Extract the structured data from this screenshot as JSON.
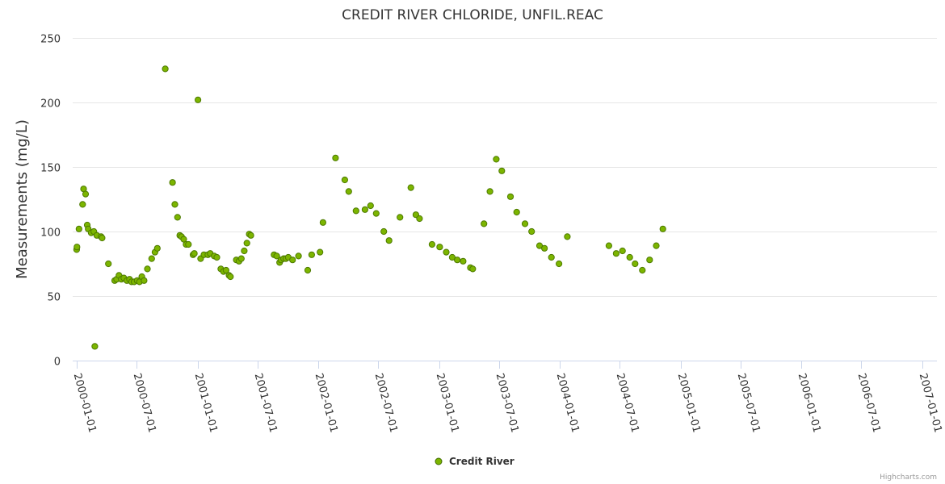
{
  "chart_data": {
    "type": "scatter",
    "title": "CREDIT RIVER CHLORIDE, UNFIL.REAC",
    "xlabel": "",
    "ylabel": "Measurements (mg/L)",
    "ylim": [
      0,
      250
    ],
    "yticks": [
      0,
      50,
      100,
      150,
      200,
      250
    ],
    "xlim": [
      "1999-12-20",
      "2007-02-15"
    ],
    "xticks": [
      "2000-01-01",
      "2000-07-01",
      "2001-01-01",
      "2001-07-01",
      "2002-01-01",
      "2002-07-01",
      "2003-01-01",
      "2003-07-01",
      "2004-01-01",
      "2004-07-01",
      "2005-01-01",
      "2005-07-01",
      "2006-01-01",
      "2006-07-01",
      "2007-01-01"
    ],
    "grid": true,
    "legend_position": "bottom-center",
    "color": "#7cb500",
    "series": [
      {
        "name": "Credit River",
        "points": [
          {
            "x": "2000-01-01",
            "y": 86
          },
          {
            "x": "2000-01-02",
            "y": 88
          },
          {
            "x": "2000-01-08",
            "y": 102
          },
          {
            "x": "2000-01-19",
            "y": 121
          },
          {
            "x": "2000-01-22",
            "y": 133
          },
          {
            "x": "2000-01-28",
            "y": 129
          },
          {
            "x": "2000-02-02",
            "y": 105
          },
          {
            "x": "2000-02-05",
            "y": 102
          },
          {
            "x": "2000-02-14",
            "y": 99
          },
          {
            "x": "2000-02-22",
            "y": 100
          },
          {
            "x": "2000-02-25",
            "y": 11
          },
          {
            "x": "2000-03-02",
            "y": 97
          },
          {
            "x": "2000-03-15",
            "y": 96
          },
          {
            "x": "2000-03-18",
            "y": 95
          },
          {
            "x": "2000-04-06",
            "y": 75
          },
          {
            "x": "2000-04-25",
            "y": 62
          },
          {
            "x": "2000-05-01",
            "y": 63
          },
          {
            "x": "2000-05-08",
            "y": 66
          },
          {
            "x": "2000-05-15",
            "y": 63
          },
          {
            "x": "2000-05-23",
            "y": 64
          },
          {
            "x": "2000-06-01",
            "y": 62
          },
          {
            "x": "2000-06-09",
            "y": 63
          },
          {
            "x": "2000-06-15",
            "y": 61
          },
          {
            "x": "2000-06-23",
            "y": 61
          },
          {
            "x": "2000-07-02",
            "y": 62
          },
          {
            "x": "2000-07-09",
            "y": 61
          },
          {
            "x": "2000-07-16",
            "y": 65
          },
          {
            "x": "2000-07-23",
            "y": 62
          },
          {
            "x": "2000-08-02",
            "y": 71
          },
          {
            "x": "2000-08-15",
            "y": 79
          },
          {
            "x": "2000-08-25",
            "y": 84
          },
          {
            "x": "2000-09-01",
            "y": 87
          },
          {
            "x": "2000-09-25",
            "y": 226
          },
          {
            "x": "2000-10-17",
            "y": 138
          },
          {
            "x": "2000-10-24",
            "y": 121
          },
          {
            "x": "2000-11-01",
            "y": 111
          },
          {
            "x": "2000-11-08",
            "y": 97
          },
          {
            "x": "2000-11-13",
            "y": 96
          },
          {
            "x": "2000-11-20",
            "y": 94
          },
          {
            "x": "2000-11-27",
            "y": 90
          },
          {
            "x": "2000-12-04",
            "y": 90
          },
          {
            "x": "2000-12-18",
            "y": 82
          },
          {
            "x": "2000-12-22",
            "y": 83
          },
          {
            "x": "2001-01-02",
            "y": 202
          },
          {
            "x": "2001-01-10",
            "y": 79
          },
          {
            "x": "2001-01-20",
            "y": 82
          },
          {
            "x": "2001-02-01",
            "y": 82
          },
          {
            "x": "2001-02-08",
            "y": 83
          },
          {
            "x": "2001-02-20",
            "y": 81
          },
          {
            "x": "2001-02-28",
            "y": 80
          },
          {
            "x": "2001-03-12",
            "y": 71
          },
          {
            "x": "2001-03-20",
            "y": 69
          },
          {
            "x": "2001-03-28",
            "y": 70
          },
          {
            "x": "2001-04-06",
            "y": 66
          },
          {
            "x": "2001-04-10",
            "y": 65
          },
          {
            "x": "2001-04-28",
            "y": 78
          },
          {
            "x": "2001-05-06",
            "y": 77
          },
          {
            "x": "2001-05-13",
            "y": 79
          },
          {
            "x": "2001-05-22",
            "y": 85
          },
          {
            "x": "2001-05-30",
            "y": 91
          },
          {
            "x": "2001-06-06",
            "y": 98
          },
          {
            "x": "2001-06-11",
            "y": 97
          },
          {
            "x": "2001-08-20",
            "y": 82
          },
          {
            "x": "2001-08-28",
            "y": 81
          },
          {
            "x": "2001-09-06",
            "y": 76
          },
          {
            "x": "2001-09-10",
            "y": 78
          },
          {
            "x": "2001-09-18",
            "y": 79
          },
          {
            "x": "2001-09-25",
            "y": 79
          },
          {
            "x": "2001-10-02",
            "y": 80
          },
          {
            "x": "2001-10-15",
            "y": 78
          },
          {
            "x": "2001-11-02",
            "y": 81
          },
          {
            "x": "2001-11-30",
            "y": 70
          },
          {
            "x": "2001-12-12",
            "y": 82
          },
          {
            "x": "2002-01-06",
            "y": 84
          },
          {
            "x": "2002-01-15",
            "y": 107
          },
          {
            "x": "2002-02-22",
            "y": 157
          },
          {
            "x": "2002-03-22",
            "y": 140
          },
          {
            "x": "2002-04-03",
            "y": 131
          },
          {
            "x": "2002-04-25",
            "y": 116
          },
          {
            "x": "2002-05-22",
            "y": 117
          },
          {
            "x": "2002-06-08",
            "y": 120
          },
          {
            "x": "2002-06-25",
            "y": 114
          },
          {
            "x": "2002-07-18",
            "y": 100
          },
          {
            "x": "2002-08-03",
            "y": 93
          },
          {
            "x": "2002-09-05",
            "y": 111
          },
          {
            "x": "2002-10-08",
            "y": 134
          },
          {
            "x": "2002-10-23",
            "y": 113
          },
          {
            "x": "2002-11-03",
            "y": 110
          },
          {
            "x": "2002-12-11",
            "y": 90
          },
          {
            "x": "2003-01-03",
            "y": 88
          },
          {
            "x": "2003-01-23",
            "y": 84
          },
          {
            "x": "2003-02-10",
            "y": 80
          },
          {
            "x": "2003-02-25",
            "y": 78
          },
          {
            "x": "2003-03-15",
            "y": 77
          },
          {
            "x": "2003-04-06",
            "y": 72
          },
          {
            "x": "2003-04-13",
            "y": 71
          },
          {
            "x": "2003-05-17",
            "y": 106
          },
          {
            "x": "2003-06-04",
            "y": 131
          },
          {
            "x": "2003-06-23",
            "y": 156
          },
          {
            "x": "2003-07-10",
            "y": 147
          },
          {
            "x": "2003-08-05",
            "y": 127
          },
          {
            "x": "2003-08-24",
            "y": 115
          },
          {
            "x": "2003-09-18",
            "y": 106
          },
          {
            "x": "2003-10-08",
            "y": 100
          },
          {
            "x": "2003-11-01",
            "y": 89
          },
          {
            "x": "2003-11-16",
            "y": 87
          },
          {
            "x": "2003-12-07",
            "y": 80
          },
          {
            "x": "2003-12-30",
            "y": 75
          },
          {
            "x": "2004-01-24",
            "y": 96
          },
          {
            "x": "2004-05-29",
            "y": 89
          },
          {
            "x": "2004-06-20",
            "y": 83
          },
          {
            "x": "2004-07-09",
            "y": 85
          },
          {
            "x": "2004-07-31",
            "y": 80
          },
          {
            "x": "2004-08-16",
            "y": 75
          },
          {
            "x": "2004-09-07",
            "y": 70
          },
          {
            "x": "2004-09-29",
            "y": 78
          },
          {
            "x": "2004-10-19",
            "y": 89
          },
          {
            "x": "2004-11-08",
            "y": 102
          }
        ]
      }
    ]
  },
  "legend": {
    "label": "Credit River"
  },
  "credits": {
    "text": "Highcharts.com"
  }
}
